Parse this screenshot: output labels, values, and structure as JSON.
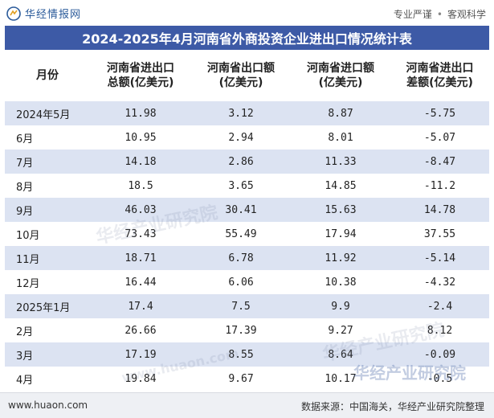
{
  "header": {
    "brand": "华经情报网",
    "tags": [
      "专业严谨",
      "客观科学"
    ]
  },
  "title": "2024-2025年4月河南省外商投资企业进出口情况统计表",
  "table": {
    "columns": [
      "月份",
      "河南省进出口总额(亿美元)",
      "河南省出口额(亿美元)",
      "河南省进口额(亿美元)",
      "河南省进出口差额(亿美元)"
    ],
    "rows": [
      {
        "month": "2024年5月",
        "total": "11.98",
        "export": "3.12",
        "import": "8.87",
        "balance": "-5.75"
      },
      {
        "month": "6月",
        "total": "10.95",
        "export": "2.94",
        "import": "8.01",
        "balance": "-5.07"
      },
      {
        "month": "7月",
        "total": "14.18",
        "export": "2.86",
        "import": "11.33",
        "balance": "-8.47"
      },
      {
        "month": "8月",
        "total": "18.5",
        "export": "3.65",
        "import": "14.85",
        "balance": "-11.2"
      },
      {
        "month": "9月",
        "total": "46.03",
        "export": "30.41",
        "import": "15.63",
        "balance": "14.78"
      },
      {
        "month": "10月",
        "total": "73.43",
        "export": "55.49",
        "import": "17.94",
        "balance": "37.55"
      },
      {
        "month": "11月",
        "total": "18.71",
        "export": "6.78",
        "import": "11.92",
        "balance": "-5.14"
      },
      {
        "month": "12月",
        "total": "16.44",
        "export": "6.06",
        "import": "10.38",
        "balance": "-4.32"
      },
      {
        "month": "2025年1月",
        "total": "17.4",
        "export": "7.5",
        "import": "9.9",
        "balance": "-2.4"
      },
      {
        "month": "2月",
        "total": "26.66",
        "export": "17.39",
        "import": "9.27",
        "balance": "8.12"
      },
      {
        "month": "3月",
        "total": "17.19",
        "export": "8.55",
        "import": "8.64",
        "balance": "-0.09"
      },
      {
        "month": "4月",
        "total": "19.84",
        "export": "9.67",
        "import": "10.17",
        "balance": "-0.5"
      }
    ]
  },
  "footer": {
    "site": "www.huaon.com",
    "source": "数据来源：中国海关，华经产业研究院整理"
  },
  "watermarks": [
    "华经产业研究院",
    "华经产业研究院",
    "华经产业研究院",
    "www.huaon.com"
  ],
  "colors": {
    "title_bg": "#3d5aa6",
    "stripe": "#dce3f2",
    "negative": "#3a8fb7",
    "brand": "#2a5a9a"
  }
}
